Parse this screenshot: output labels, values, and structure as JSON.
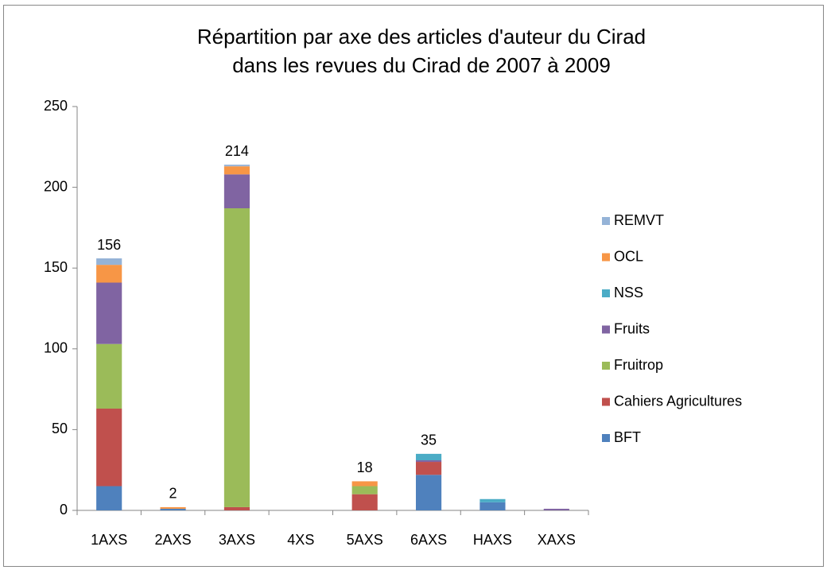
{
  "chart_data": {
    "type": "stacked_bar",
    "title": [
      "Répartition par axe des articles d'auteur du Cirad",
      "dans les revues du Cirad de 2007 à 2009"
    ],
    "categories": [
      "1AXS",
      "2AXS",
      "3AXS",
      "4XS",
      "5AXS",
      "6AXS",
      "HAXS",
      "XAXS"
    ],
    "series": [
      {
        "name": "BFT",
        "color": "#4f81bd",
        "values": [
          15,
          1,
          0,
          0,
          0,
          22,
          5,
          0
        ]
      },
      {
        "name": "Cahiers Agricultures",
        "color": "#c0504d",
        "values": [
          48,
          0,
          2,
          0,
          10,
          8,
          0,
          0
        ]
      },
      {
        "name": "Fruitrop",
        "color": "#9bbb59",
        "values": [
          40,
          0,
          185,
          0,
          5,
          0,
          0,
          0
        ]
      },
      {
        "name": "Fruits",
        "color": "#8064a2",
        "values": [
          38,
          0,
          21,
          0,
          0,
          1,
          0,
          1
        ]
      },
      {
        "name": "NSS",
        "color": "#4bacc6",
        "values": [
          0,
          0,
          0,
          0,
          0,
          4,
          2,
          0
        ]
      },
      {
        "name": "OCL",
        "color": "#f79646",
        "values": [
          11,
          1,
          5,
          0,
          3,
          0,
          0,
          0
        ]
      },
      {
        "name": "REMVT",
        "color": "#95b3d7",
        "values": [
          4,
          0,
          1,
          0,
          0,
          0,
          0,
          0
        ]
      }
    ],
    "totals": [
      156,
      2,
      214,
      null,
      18,
      35,
      null,
      null
    ],
    "ylim": [
      0,
      250
    ],
    "yticks": [
      0,
      50,
      100,
      150,
      200,
      250
    ],
    "legend": "right"
  }
}
